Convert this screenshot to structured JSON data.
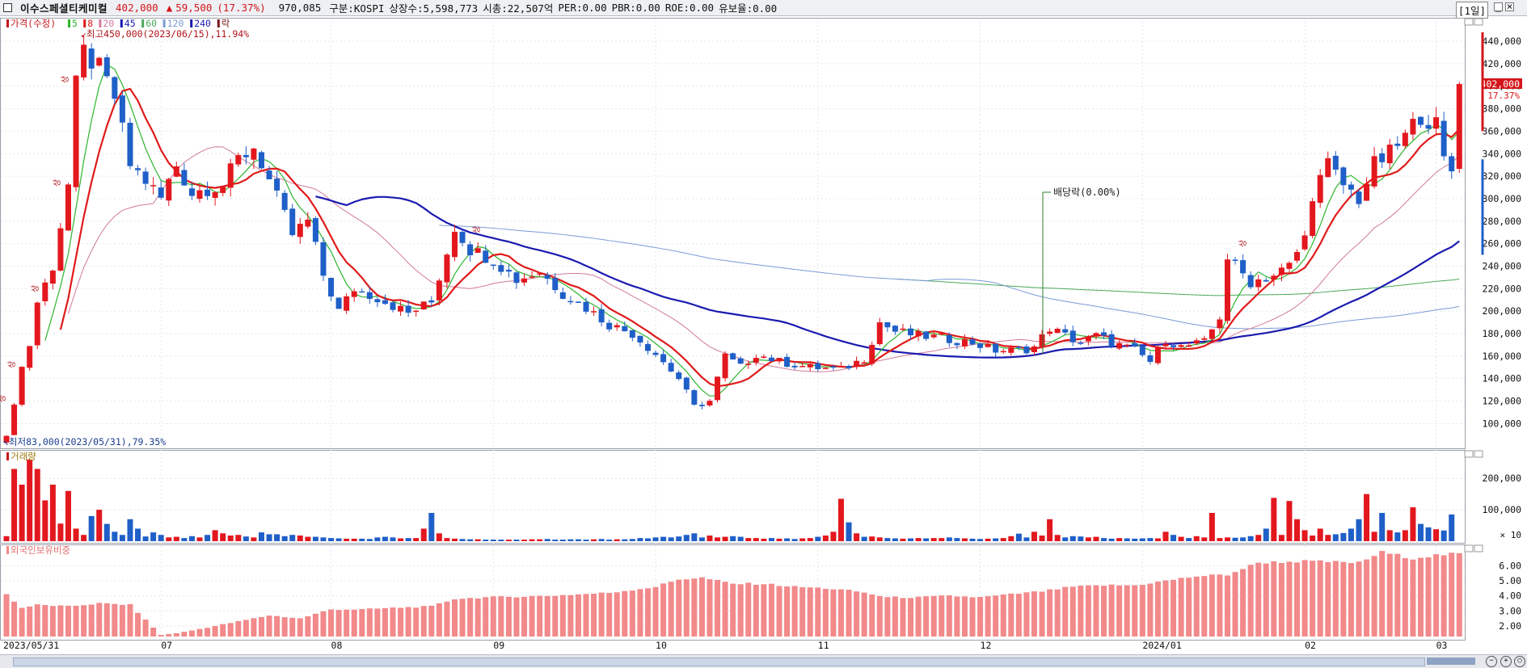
{
  "header": {
    "name": "이수스페셜티케미컬",
    "price": "402,000",
    "change_arrow": "▲",
    "change": "59,500",
    "change_pct": "(17.37%)",
    "volume": "970,085",
    "market": "구분:KOSPI",
    "shares": "상장수:5,598,773",
    "mktcap": "시총:22,507억",
    "per": "PER:0.00",
    "pbr": "PBR:0.00",
    "roe": "ROE:0.00",
    "float": "유보율:0.00",
    "period": "[1일]"
  },
  "colors": {
    "up": "#e3171e",
    "down": "#1f5fc8",
    "ma5": "#2db52d",
    "ma8": "#e01a1a",
    "ma20": "#d27a9a",
    "ma45": "#1a1ab0",
    "ma60": "#4aa85a",
    "ma120": "#7b9bd6",
    "foreign": "#f2898a"
  },
  "chart_data": [
    {
      "type": "candlestick",
      "legend": [
        "가격(수정)",
        "5",
        "8",
        "20",
        "45",
        "60",
        "120",
        "240",
        "락"
      ],
      "annotations": {
        "high": "최고450,000(2023/06/15),11.94%",
        "low": "최저83,000(2023/05/31),79.35%",
        "dividend": "배당락(0.00%)",
        "limit_up": "상",
        "last_price": "402,000",
        "last_pct": "17.37%"
      },
      "y_ticks": [
        "440,000",
        "420,000",
        "400,000",
        "380,000",
        "360,000",
        "340,000",
        "320,000",
        "300,000",
        "280,000",
        "260,000",
        "240,000",
        "220,000",
        "200,000",
        "180,000",
        "160,000",
        "140,000",
        "120,000",
        "100,000"
      ],
      "x_labels": [
        "2023/05/31",
        "07",
        "08",
        "09",
        "10",
        "11",
        "12",
        "2024/01",
        "02",
        "03"
      ],
      "ylim": [
        83000,
        458000
      ],
      "date_range": [
        "2023-05-31",
        "2024-03-18"
      ],
      "close_path": [
        [
          0,
          89000
        ],
        [
          2,
          150000
        ],
        [
          3,
          170000
        ],
        [
          4,
          208000
        ],
        [
          6,
          240000
        ],
        [
          8,
          312000
        ],
        [
          9,
          400000
        ],
        [
          10,
          430000
        ],
        [
          12,
          415000
        ],
        [
          14,
          390000
        ],
        [
          16,
          330000
        ],
        [
          18,
          316000
        ],
        [
          20,
          300000
        ],
        [
          22,
          330000
        ],
        [
          24,
          305000
        ],
        [
          26,
          310000
        ],
        [
          28,
          312000
        ],
        [
          30,
          335000
        ],
        [
          32,
          346000
        ],
        [
          33,
          332000
        ],
        [
          35,
          300000
        ],
        [
          37,
          268000
        ],
        [
          39,
          280000
        ],
        [
          41,
          232000
        ],
        [
          43,
          200000
        ],
        [
          45,
          220000
        ],
        [
          48,
          212000
        ],
        [
          52,
          198000
        ],
        [
          55,
          208000
        ],
        [
          58,
          275000
        ],
        [
          60,
          255000
        ],
        [
          63,
          246000
        ],
        [
          66,
          228000
        ],
        [
          69,
          235000
        ],
        [
          72,
          216000
        ],
        [
          75,
          203000
        ],
        [
          78,
          188000
        ],
        [
          81,
          180000
        ],
        [
          84,
          162000
        ],
        [
          87,
          140000
        ],
        [
          89,
          115000
        ],
        [
          91,
          120000
        ],
        [
          93,
          160000
        ],
        [
          95,
          150000
        ],
        [
          97,
          162000
        ],
        [
          100,
          155000
        ],
        [
          104,
          150000
        ],
        [
          108,
          148000
        ],
        [
          111,
          158000
        ],
        [
          113,
          190000
        ],
        [
          115,
          182000
        ],
        [
          118,
          178000
        ],
        [
          121,
          176000
        ],
        [
          125,
          172000
        ],
        [
          128,
          165000
        ],
        [
          131,
          165000
        ],
        [
          133,
          168000
        ],
        [
          135,
          185000
        ],
        [
          137,
          178000
        ],
        [
          139,
          172000
        ],
        [
          141,
          178000
        ],
        [
          143,
          172000
        ],
        [
          146,
          165000
        ],
        [
          148,
          155000
        ],
        [
          150,
          175000
        ],
        [
          152,
          168000
        ],
        [
          155,
          172000
        ],
        [
          157,
          195000
        ],
        [
          158,
          248000
        ],
        [
          159,
          240000
        ],
        [
          161,
          226000
        ],
        [
          164,
          232000
        ],
        [
          166,
          240000
        ],
        [
          168,
          265000
        ],
        [
          169,
          305000
        ],
        [
          171,
          330000
        ],
        [
          173,
          312000
        ],
        [
          175,
          300000
        ],
        [
          177,
          330000
        ],
        [
          179,
          340000
        ],
        [
          181,
          355000
        ],
        [
          183,
          375000
        ],
        [
          185,
          365000
        ],
        [
          186,
          334000
        ],
        [
          187,
          325000
        ],
        [
          188,
          402000
        ]
      ],
      "ma_weights": {
        "ma5": 5,
        "ma8": 8,
        "ma20": 20,
        "ma45": 45,
        "ma120": 120,
        "ma240": 240
      },
      "ma45_start": 40,
      "ma120_start": 56,
      "ma240_start": 115
    },
    {
      "type": "bar",
      "legend": [
        "거래량"
      ],
      "y_ticks": [
        "200,000",
        "100,000"
      ],
      "unit_label": "× 10",
      "ylim": [
        0,
        270000
      ],
      "values": [
        16000,
        230000,
        180000,
        260000,
        230000,
        130000,
        180000,
        56000,
        160000,
        40000,
        20000,
        80000,
        100000,
        55000,
        30000,
        20000,
        70000,
        40000,
        15000,
        28000,
        20000,
        12000,
        14000,
        10000,
        16000,
        12000,
        20000,
        35000,
        25000,
        18000,
        20000,
        15000,
        12000,
        28000,
        22000,
        22000,
        16000,
        20000,
        18000,
        14000,
        14000,
        12000,
        10000,
        9000,
        8000,
        8000,
        8000,
        7000,
        12000,
        14000,
        12000,
        9000,
        10000,
        10000,
        40000,
        90000,
        25000,
        10000,
        8000,
        7000,
        6000,
        6000,
        5000,
        5000,
        5000,
        5000,
        5000,
        5000,
        6000,
        6000,
        7000,
        5000,
        5000,
        6000,
        6000,
        5000,
        6000,
        7000,
        5000,
        6000,
        6000,
        7000,
        10000,
        9000,
        12000,
        14000,
        12000,
        15000,
        20000,
        25000,
        12000,
        18000,
        12000,
        14000,
        16000,
        14000,
        10000,
        10000,
        8000,
        10000,
        8000,
        9000,
        7000,
        9000,
        10000,
        14000,
        18000,
        30000,
        135000,
        60000,
        25000,
        14000,
        15000,
        12000,
        10000,
        9000,
        8000,
        9000,
        10000,
        9000,
        10000,
        10000,
        12000,
        10000,
        9000,
        8000,
        7000,
        8000,
        9000,
        10000,
        16000,
        24000,
        12000,
        30000,
        18000,
        70000,
        20000,
        12000,
        16000,
        15000,
        12000,
        14000,
        10000,
        8000,
        10000,
        9000,
        8000,
        9000,
        10000,
        9000,
        30000,
        20000,
        14000,
        10000,
        16000,
        12000,
        90000,
        10000,
        12000,
        11000,
        12000,
        16000,
        20000,
        40000,
        138000,
        20000,
        128000,
        70000,
        35000,
        18000,
        40000,
        20000,
        22000,
        26000,
        40000,
        70000,
        150000,
        30000,
        90000,
        35000,
        28000,
        35000,
        108000,
        55000,
        44000,
        38000,
        34000,
        85000
      ]
    },
    {
      "type": "bar",
      "legend": [
        "외국인보유비중"
      ],
      "y_ticks": [
        "6.00",
        "5.00",
        "4.00",
        "3.00",
        "2.00"
      ],
      "ylim": [
        1.3,
        7.2
      ],
      "start": 4.1,
      "path": [
        [
          0,
          4.1
        ],
        [
          2,
          3.2
        ],
        [
          4,
          3.4
        ],
        [
          8,
          3.3
        ],
        [
          12,
          3.5
        ],
        [
          16,
          3.4
        ],
        [
          20,
          1.4
        ],
        [
          23,
          1.6
        ],
        [
          27,
          2.0
        ],
        [
          30,
          2.3
        ],
        [
          34,
          2.7
        ],
        [
          38,
          2.5
        ],
        [
          42,
          3.1
        ],
        [
          46,
          3.1
        ],
        [
          50,
          3.2
        ],
        [
          55,
          3.3
        ],
        [
          58,
          3.8
        ],
        [
          62,
          3.9
        ],
        [
          70,
          4.0
        ],
        [
          78,
          4.2
        ],
        [
          84,
          4.6
        ],
        [
          87,
          5.1
        ],
        [
          90,
          5.2
        ],
        [
          94,
          4.8
        ],
        [
          98,
          4.8
        ],
        [
          102,
          4.6
        ],
        [
          106,
          4.5
        ],
        [
          110,
          4.3
        ],
        [
          114,
          3.9
        ],
        [
          118,
          3.9
        ],
        [
          122,
          4.0
        ],
        [
          126,
          3.9
        ],
        [
          130,
          4.1
        ],
        [
          134,
          4.3
        ],
        [
          138,
          4.6
        ],
        [
          142,
          4.7
        ],
        [
          146,
          4.7
        ],
        [
          150,
          5.0
        ],
        [
          154,
          5.3
        ],
        [
          158,
          5.4
        ],
        [
          162,
          6.2
        ],
        [
          168,
          6.3
        ],
        [
          175,
          6.2
        ],
        [
          178,
          6.9
        ],
        [
          182,
          6.5
        ],
        [
          185,
          6.7
        ],
        [
          188,
          6.8
        ]
      ]
    }
  ]
}
